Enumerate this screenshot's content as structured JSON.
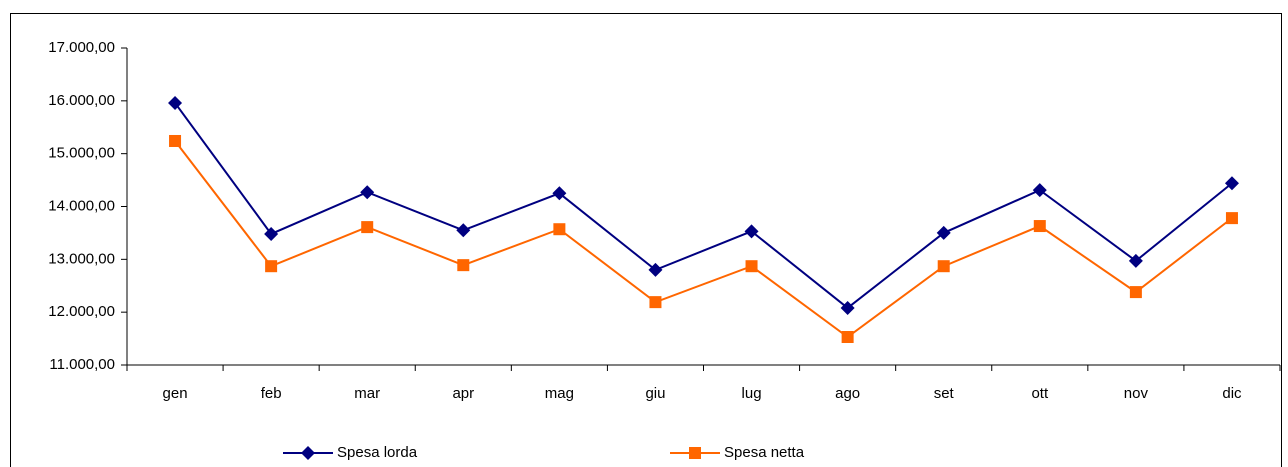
{
  "chart_data": {
    "type": "line",
    "categories": [
      "gen",
      "feb",
      "mar",
      "apr",
      "mag",
      "giu",
      "lug",
      "ago",
      "set",
      "ott",
      "nov",
      "dic"
    ],
    "series": [
      {
        "name": "Spesa lorda",
        "color": "#000080",
        "marker": "diamond",
        "values": [
          15960,
          13480,
          14270,
          13550,
          14250,
          12800,
          13530,
          12080,
          13500,
          14310,
          12970,
          14440
        ]
      },
      {
        "name": "Spesa netta",
        "color": "#ff6600",
        "marker": "square",
        "values": [
          15240,
          12870,
          13610,
          12890,
          13570,
          12190,
          12870,
          11530,
          12870,
          13630,
          12380,
          13780
        ]
      }
    ],
    "ylim": [
      11000,
      17000
    ],
    "yticks": [
      {
        "value": 11000,
        "label": "11.000,00"
      },
      {
        "value": 12000,
        "label": "12.000,00"
      },
      {
        "value": 13000,
        "label": "13.000,00"
      },
      {
        "value": 14000,
        "label": "14.000,00"
      },
      {
        "value": 15000,
        "label": "15.000,00"
      },
      {
        "value": 16000,
        "label": "16.000,00"
      },
      {
        "value": 17000,
        "label": "17.000,00"
      }
    ],
    "grid": false,
    "legend": "bottom"
  }
}
